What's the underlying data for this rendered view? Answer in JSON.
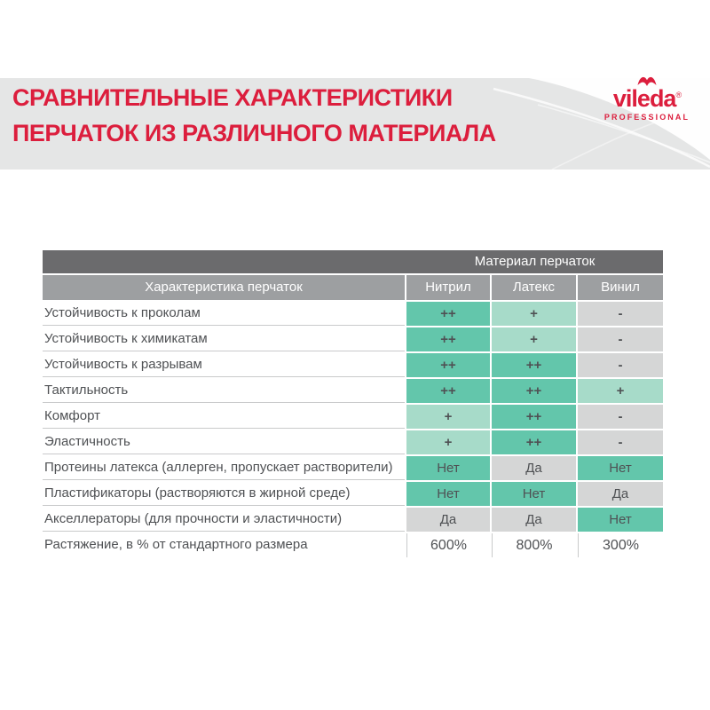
{
  "colors": {
    "accent_red": "#dc1e3d",
    "band_gray": "#e5e6e6",
    "header_dark": "#6b6b6d",
    "header_mid": "#9d9fa1",
    "cell_teal": "#63c6ab",
    "cell_teal_light": "#a7dbc9",
    "cell_gray": "#d5d6d6",
    "text_dark": "#4f5154",
    "line_gray": "#c9cacb"
  },
  "header": {
    "title_line1": "СРАВНИТЕЛЬНЫЕ ХАРАКТЕРИСТИКИ",
    "title_line2": "ПЕРЧАТОК ИЗ РАЗЛИЧНОГО МАТЕРИАЛА",
    "logo": {
      "brand": "vileda",
      "registered_mark": "®",
      "sub": "PROFESSIONAL"
    }
  },
  "table": {
    "group_header": "Материал перчаток",
    "col_header": "Характеристика перчаток",
    "materials": [
      "Нитрил",
      "Латекс",
      "Винил"
    ],
    "rows": [
      {
        "label": "Устойчивость к проколам",
        "values": [
          "++",
          "+",
          "-"
        ],
        "styles": [
          "pp",
          "p",
          "m"
        ]
      },
      {
        "label": "Устойчивость к химикатам",
        "values": [
          "++",
          "+",
          "-"
        ],
        "styles": [
          "pp",
          "p",
          "m"
        ]
      },
      {
        "label": "Устойчивость к разрывам",
        "values": [
          "++",
          "++",
          "-"
        ],
        "styles": [
          "pp",
          "pp",
          "m"
        ]
      },
      {
        "label": "Тактильность",
        "values": [
          "++",
          "++",
          "+"
        ],
        "styles": [
          "pp",
          "pp",
          "p"
        ]
      },
      {
        "label": "Комфорт",
        "values": [
          "+",
          "++",
          "-"
        ],
        "styles": [
          "p",
          "pp",
          "m"
        ]
      },
      {
        "label": "Эластичность",
        "values": [
          "+",
          "++",
          "-"
        ],
        "styles": [
          "p",
          "pp",
          "m"
        ]
      },
      {
        "label": "Протеины латекса (аллерген, пропускает растворители)",
        "values": [
          "Нет",
          "Да",
          "Нет"
        ],
        "styles": [
          "good",
          "bad",
          "good"
        ]
      },
      {
        "label": "Пластификаторы (растворяются в жирной среде)",
        "values": [
          "Нет",
          "Нет",
          "Да"
        ],
        "styles": [
          "good",
          "good",
          "bad"
        ]
      },
      {
        "label": "Акселлераторы (для прочности и эластичности)",
        "values": [
          "Да",
          "Да",
          "Нет"
        ],
        "styles": [
          "bad",
          "bad",
          "good"
        ]
      },
      {
        "label": "Растяжение, в % от стандартного размера",
        "values": [
          "600%",
          "800%",
          "300%"
        ],
        "styles": [
          "plain",
          "plain",
          "plain"
        ]
      }
    ]
  }
}
